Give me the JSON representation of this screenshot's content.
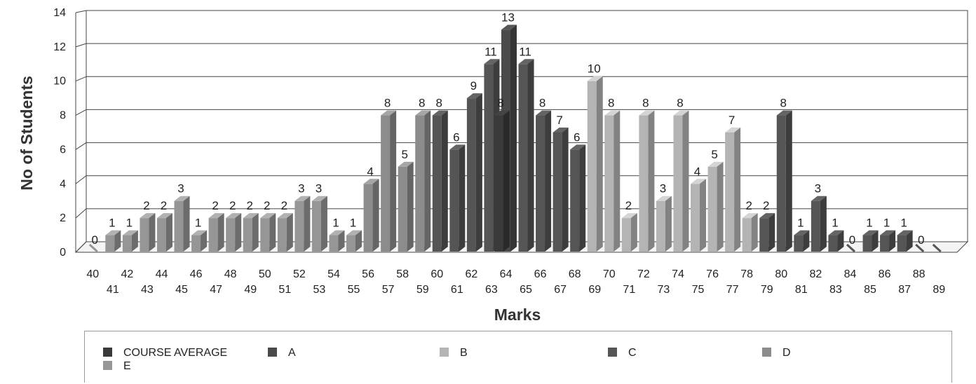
{
  "chart_data": {
    "type": "bar",
    "xlabel": "Marks",
    "ylabel": "No of Students",
    "ylim": [
      0,
      14
    ],
    "yticks": [
      "0",
      "2",
      "4",
      "6",
      "8",
      "10",
      "12",
      "14"
    ],
    "categories": [
      "40",
      "41",
      "42",
      "43",
      "44",
      "45",
      "46",
      "47",
      "48",
      "49",
      "50",
      "51",
      "52",
      "53",
      "54",
      "55",
      "56",
      "57",
      "58",
      "59",
      "60",
      "61",
      "62",
      "63",
      "64",
      "65",
      "66",
      "67",
      "68",
      "69",
      "70",
      "71",
      "72",
      "73",
      "74",
      "75",
      "76",
      "77",
      "78",
      "79",
      "80",
      "81",
      "82",
      "83",
      "84",
      "85",
      "86",
      "87",
      "88",
      "89"
    ],
    "values": [
      0,
      1,
      1,
      2,
      2,
      3,
      1,
      2,
      2,
      2,
      2,
      2,
      3,
      3,
      1,
      1,
      4,
      8,
      5,
      8,
      8,
      6,
      9,
      11,
      13,
      11,
      8,
      7,
      6,
      10,
      8,
      2,
      8,
      3,
      8,
      4,
      5,
      7,
      2,
      2,
      8,
      1,
      3,
      1,
      0,
      1,
      1,
      1,
      0,
      0
    ],
    "bar_labels": [
      "0",
      "1",
      "1",
      "2",
      "2",
      "3",
      "1",
      "2",
      "2",
      "2",
      "2",
      "2",
      "3",
      "3",
      "1",
      "1",
      "4",
      "8",
      "5",
      "8",
      "8",
      "6",
      "9",
      "11",
      "13",
      "11",
      "8",
      "7",
      "6",
      "10",
      "8",
      "2",
      "8",
      "3",
      "8",
      "4",
      "5",
      "7",
      "2",
      "2",
      "8",
      "1",
      "3",
      "1",
      "0",
      "1",
      "1",
      "1",
      "0",
      ""
    ],
    "bar_series": [
      "E",
      "E",
      "E",
      "E",
      "E",
      "E",
      "E",
      "E",
      "E",
      "E",
      "E",
      "E",
      "E",
      "E",
      "E",
      "E",
      "D",
      "D",
      "D",
      "D",
      "C",
      "C",
      "C",
      "C",
      "A",
      "C",
      "C",
      "C",
      "C",
      "B",
      "B",
      "B",
      "B",
      "B",
      "B",
      "B",
      "B",
      "B",
      "B",
      "C",
      "C",
      "C",
      "C",
      "C",
      "C",
      "C",
      "C",
      "C",
      "C",
      "C"
    ],
    "series": [
      {
        "name": "COURSE AVERAGE",
        "color": "#3a3a3a"
      },
      {
        "name": "A",
        "color": "#4a4a4a"
      },
      {
        "name": "B",
        "color": "#b4b4b4"
      },
      {
        "name": "C",
        "color": "#555555"
      },
      {
        "name": "D",
        "color": "#8c8c8c"
      },
      {
        "name": "E",
        "color": "#969696"
      }
    ],
    "extra_bar": {
      "after": "63",
      "value": 8,
      "label": "8",
      "series": "COURSE AVERAGE"
    },
    "grid": true,
    "legend": "bottom"
  }
}
